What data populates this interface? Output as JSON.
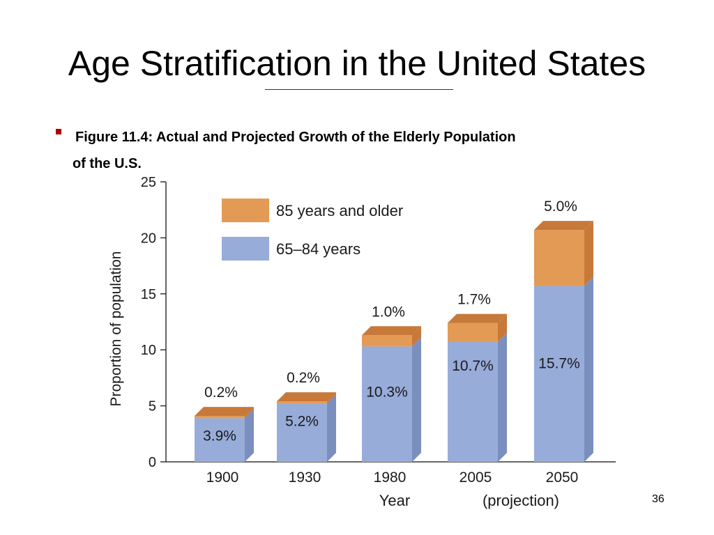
{
  "slide": {
    "title": "Age Stratification in the United States",
    "caption_line1": "Figure 11.4: Actual and Projected Growth of the Elderly Population",
    "caption_line2": "of the U.S.",
    "page_number": "36"
  },
  "colors": {
    "bar_65_84": "#97acd9",
    "bar_65_84_side": "#7a8fbe",
    "bar_85_plus": "#e39a55",
    "bar_85_plus_top": "#c7793a",
    "bullet": "#b00000"
  },
  "chart_data": {
    "type": "bar",
    "stacked": true,
    "categories": [
      "1900",
      "1930",
      "1980",
      "2005",
      "2050"
    ],
    "category_note": "(projection)",
    "xlabel": "Year",
    "ylabel": "Proportion of population",
    "ylim": [
      0,
      25
    ],
    "yticks": [
      0,
      5,
      10,
      15,
      20,
      25
    ],
    "legend_placement": "top-left",
    "series": [
      {
        "name": "65–84 years",
        "values": [
          3.9,
          5.2,
          10.3,
          10.7,
          15.7
        ],
        "labels": [
          "3.9%",
          "5.2%",
          "10.3%",
          "10.7%",
          "15.7%"
        ]
      },
      {
        "name": "85 years and older",
        "values": [
          0.2,
          0.2,
          1.0,
          1.7,
          5.0
        ],
        "labels": [
          "0.2%",
          "0.2%",
          "1.0%",
          "1.7%",
          "5.0%"
        ]
      }
    ]
  }
}
